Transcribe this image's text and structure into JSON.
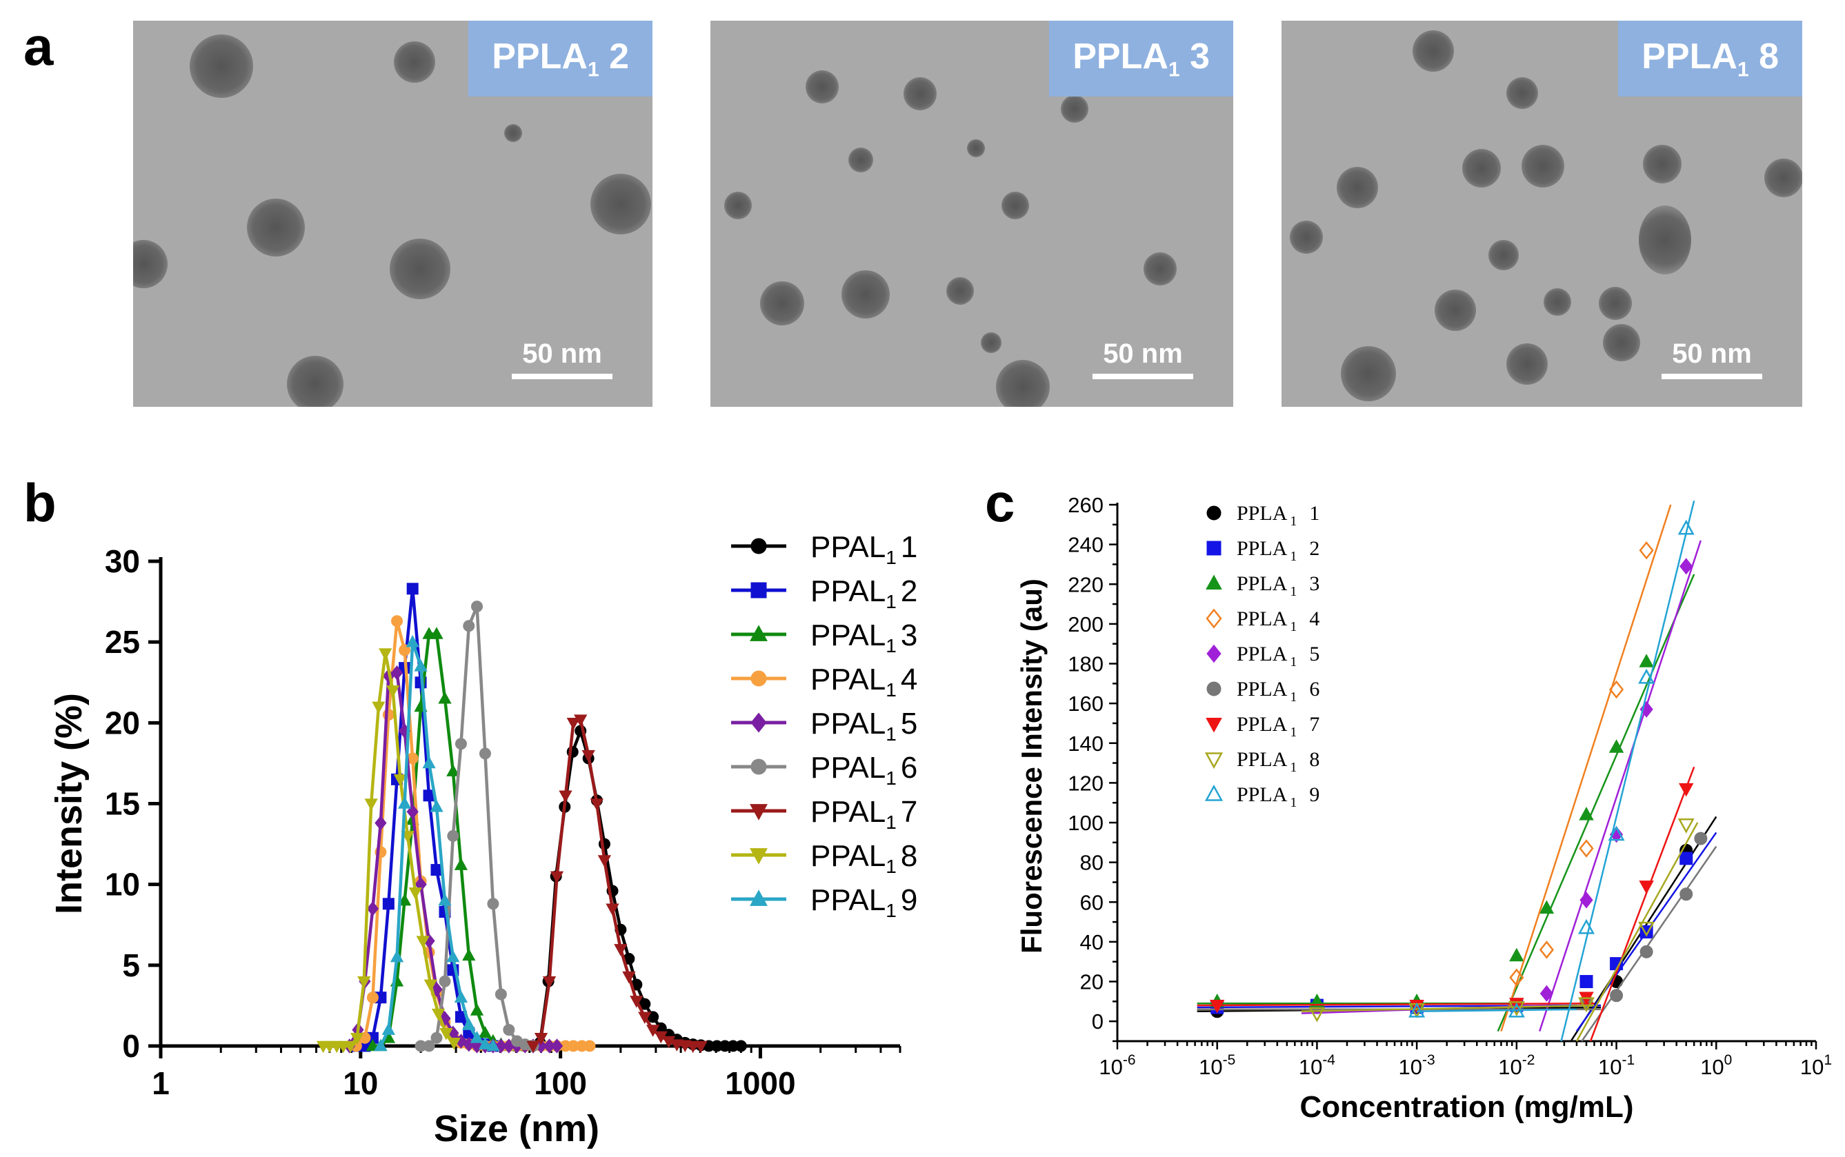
{
  "panels": {
    "a": {
      "letter": "a",
      "images": [
        {
          "label": "PPLA",
          "sub": "1",
          "suffix": " 2",
          "scalebar": "50 nm"
        },
        {
          "label": "PPLA",
          "sub": "1",
          "suffix": " 3",
          "scalebar": "50 nm"
        },
        {
          "label": "PPLA",
          "sub": "1",
          "suffix": " 8",
          "scalebar": "50 nm"
        }
      ]
    },
    "b": {
      "letter": "b"
    },
    "c": {
      "letter": "c"
    }
  },
  "chart_data": [
    {
      "id": "b",
      "type": "line",
      "xlabel": "Size (nm)",
      "ylabel": "Intensity (%)",
      "xscale": "log",
      "xlim": [
        1,
        5000
      ],
      "ylim": [
        0,
        30
      ],
      "xticks": [
        1,
        10,
        100,
        1000
      ],
      "xtick_labels": [
        "1",
        "10",
        "100",
        "1000"
      ],
      "yticks": [
        0,
        5,
        10,
        15,
        20,
        25,
        30
      ],
      "ytick_labels": [
        "0",
        "5",
        "10",
        "15",
        "20",
        "25",
        "30"
      ],
      "legend_position": "right",
      "series": [
        {
          "name": "PPAL",
          "sub": "1",
          "num": "1",
          "color": "#000000",
          "marker": "circle",
          "x": [
            60,
            66,
            72,
            79,
            87,
            95,
            105,
            115,
            126,
            138,
            152,
            166,
            182,
            200,
            220,
            240,
            264,
            290,
            318,
            348,
            382,
            420,
            460,
            504,
            552,
            606,
            665,
            730,
            800
          ],
          "y": [
            0,
            0,
            0,
            0.2,
            4,
            10.5,
            14.8,
            18.2,
            19.5,
            17.8,
            15.2,
            12.5,
            9.6,
            7.2,
            5.4,
            3.8,
            2.6,
            1.8,
            1.1,
            0.7,
            0.4,
            0.2,
            0.1,
            0.05,
            0,
            0,
            0,
            0,
            0
          ]
        },
        {
          "name": "PPAL",
          "sub": "1",
          "num": "2",
          "color": "#1010d0",
          "marker": "square",
          "x": [
            9.5,
            10.5,
            11.5,
            12.6,
            13.8,
            15.2,
            16.6,
            18.2,
            20,
            22,
            24,
            26.4,
            29,
            31.8,
            34.8,
            38.2,
            42,
            46
          ],
          "y": [
            0,
            0,
            0.5,
            3,
            8.8,
            16.5,
            23.4,
            28.3,
            22.5,
            15.5,
            10.9,
            8.3,
            4.7,
            1.8,
            0.8,
            0.3,
            0.1,
            0
          ]
        },
        {
          "name": "PPAL",
          "sub": "1",
          "num": "3",
          "color": "#0f8a0f",
          "marker": "triangle",
          "x": [
            11.5,
            12.6,
            13.8,
            15.2,
            16.6,
            18.2,
            20,
            22,
            24,
            26.4,
            29,
            31.8,
            34.8,
            38.2,
            42,
            46,
            50.4,
            55.2,
            60.6
          ],
          "y": [
            0,
            0,
            0.5,
            4,
            9,
            14,
            21,
            25.5,
            25.5,
            21.5,
            17,
            11.2,
            5.6,
            2.2,
            0.8,
            0.3,
            0.1,
            0,
            0
          ]
        },
        {
          "name": "PPAL",
          "sub": "1",
          "num": "4",
          "color": "#f7a040",
          "marker": "circle",
          "x": [
            9.5,
            10.5,
            11.5,
            12.6,
            13.8,
            15.2,
            16.6,
            18.2,
            20,
            22,
            24,
            26.4,
            29,
            31.8,
            34.8,
            38.2,
            42,
            46,
            50.4,
            55.2,
            60.6,
            66.5,
            73,
            80,
            88,
            96,
            106,
            116,
            128,
            140
          ],
          "y": [
            0,
            0.5,
            3,
            12,
            20.5,
            26.3,
            24.5,
            17.8,
            10.2,
            5.8,
            3.3,
            1.5,
            0.6,
            0.2,
            0.1,
            0,
            0,
            0,
            0,
            0,
            0,
            0,
            0,
            0,
            0,
            0,
            0,
            0,
            0,
            0
          ]
        },
        {
          "name": "PPAL",
          "sub": "1",
          "num": "5",
          "color": "#7a1fa2",
          "marker": "diamond",
          "x": [
            8.8,
            9.7,
            10.5,
            11.5,
            12.6,
            13.8,
            15.2,
            16.6,
            18.2,
            20,
            22,
            24,
            26.4,
            29,
            31.8,
            34.8,
            38.2,
            42,
            46,
            50.4,
            55.2,
            60.6,
            66.5,
            73,
            80,
            88,
            96
          ],
          "y": [
            0,
            1,
            4,
            8.5,
            13.8,
            22.9,
            23.1,
            19.5,
            14.5,
            10,
            6.5,
            3.5,
            1.7,
            0.8,
            0.3,
            0.1,
            0,
            0,
            0,
            0,
            0,
            0,
            0,
            0,
            0,
            0,
            0
          ]
        },
        {
          "name": "PPAL",
          "sub": "1",
          "num": "6",
          "color": "#888888",
          "marker": "circle",
          "x": [
            20,
            22,
            24,
            26.4,
            29,
            31.8,
            34.8,
            38.2,
            42,
            46,
            50.4,
            55.2,
            60.6,
            66.5,
            73
          ],
          "y": [
            0,
            0,
            0.5,
            4,
            13,
            18.7,
            26,
            27.2,
            18.1,
            8.8,
            3.2,
            1,
            0.3,
            0.1,
            0
          ]
        },
        {
          "name": "PPAL",
          "sub": "1",
          "num": "7",
          "color": "#9b1b1b",
          "marker": "triangle-down",
          "x": [
            73,
            80,
            88,
            96,
            106,
            116,
            126,
            138,
            152,
            166,
            182,
            200,
            220,
            240,
            264,
            290,
            318,
            348,
            382,
            420,
            460,
            504
          ],
          "y": [
            0,
            0.5,
            4,
            10.5,
            15.5,
            20,
            20.2,
            18,
            15,
            11.5,
            8.5,
            6,
            4.3,
            2.8,
            1.8,
            1,
            0.6,
            0.3,
            0.1,
            0.05,
            0,
            0
          ]
        },
        {
          "name": "PPAL",
          "sub": "1",
          "num": "8",
          "color": "#b5b513",
          "marker": "triangle-down",
          "x": [
            6.5,
            7,
            7.6,
            8.2,
            8.9,
            9.6,
            10.4,
            11.3,
            12.3,
            13.3,
            14.5,
            15.8,
            17.2,
            18.8,
            20.5,
            22.4,
            24.5,
            26.8,
            29.3
          ],
          "y": [
            0,
            0,
            0,
            0,
            0,
            0.5,
            4,
            15,
            21,
            24.3,
            22,
            16.5,
            13,
            9.5,
            6.5,
            3.8,
            2,
            0.8,
            0.2
          ]
        },
        {
          "name": "PPAL",
          "sub": "1",
          "num": "9",
          "color": "#2aa6c6",
          "marker": "triangle",
          "x": [
            12.6,
            13.8,
            15.2,
            16.6,
            18.2,
            20,
            22,
            24,
            26.4,
            29,
            31.8,
            34.8,
            38.2,
            42,
            46
          ],
          "y": [
            0,
            1,
            5.5,
            15,
            25,
            23.5,
            17.5,
            14.8,
            9,
            5.5,
            3,
            1.3,
            0.5,
            0.1,
            0
          ]
        }
      ]
    },
    {
      "id": "c",
      "type": "scatter",
      "xlabel": "Concentration (mg/mL)",
      "ylabel": "Fluorescence Intensity (au)",
      "xscale": "log",
      "xlim": [
        1e-06,
        10
      ],
      "ylim": [
        -10,
        260
      ],
      "xtick_exponents": [
        "-6",
        "-5",
        "-4",
        "-3",
        "-2",
        "-1",
        "0",
        "1"
      ],
      "xtick_base": "10",
      "yticks": [
        0,
        20,
        40,
        60,
        80,
        100,
        120,
        140,
        160,
        180,
        200,
        220,
        240,
        260
      ],
      "ytick_labels": [
        "0",
        "20",
        "40",
        "60",
        "80",
        "100",
        "120",
        "140",
        "160",
        "180",
        "200",
        "220",
        "240",
        "260"
      ],
      "legend_position": "top-left",
      "series": [
        {
          "name": "PPLA",
          "sub": "1",
          "num": "1",
          "color": "#000000",
          "marker": "circle",
          "x": [
            1e-05,
            0.0001,
            0.001,
            0.01,
            0.05,
            0.1,
            0.5
          ],
          "y": [
            5,
            7,
            8,
            8,
            10,
            20,
            86
          ],
          "fit": [
            [
              6.3e-06,
              5
            ],
            [
              0.07,
              7
            ]
          ],
          "fit2": [
            [
              0.035,
              -10
            ],
            [
              1,
              103
            ]
          ]
        },
        {
          "name": "PPLA",
          "sub": "1",
          "num": "2",
          "color": "#1414e6",
          "marker": "square",
          "x": [
            1e-05,
            0.0001,
            0.001,
            0.01,
            0.05,
            0.1,
            0.2,
            0.5
          ],
          "y": [
            7,
            8,
            7,
            8,
            20,
            29,
            45,
            82
          ],
          "fit": [
            [
              6.3e-06,
              7
            ],
            [
              0.07,
              8
            ]
          ],
          "fit2": [
            [
              0.04,
              -5
            ],
            [
              1,
              95
            ]
          ]
        },
        {
          "name": "PPLA",
          "sub": "1",
          "num": "3",
          "color": "#16941a",
          "marker": "triangle",
          "x": [
            1e-05,
            0.0001,
            0.001,
            0.01,
            0.02,
            0.05,
            0.1,
            0.2
          ],
          "y": [
            10,
            10,
            10,
            33,
            57,
            104,
            138,
            181
          ],
          "fit": [
            [
              6.3e-06,
              9
            ],
            [
              0.01,
              9
            ]
          ],
          "fit2": [
            [
              0.0065,
              -5
            ],
            [
              0.6,
              225
            ]
          ]
        },
        {
          "name": "PPLA",
          "sub": "1",
          "num": "4",
          "color": "#f08020",
          "marker": "diamond-open",
          "x": [
            0.01,
            0.02,
            0.05,
            0.1,
            0.2
          ],
          "y": [
            22,
            36,
            87,
            167,
            237
          ],
          "fit": [
            [
              6.3e-06,
              6
            ],
            [
              0.008,
              6
            ]
          ],
          "fit2": [
            [
              0.007,
              -5
            ],
            [
              0.35,
              260
            ]
          ]
        },
        {
          "name": "PPLA",
          "sub": "1",
          "num": "5",
          "color": "#a020d8",
          "marker": "diamond",
          "x": [
            0.02,
            0.05,
            0.1,
            0.2,
            0.5
          ],
          "y": [
            14,
            61,
            94,
            157,
            229
          ],
          "fit": [
            [
              7e-05,
              4
            ],
            [
              0.02,
              8
            ]
          ],
          "fit2": [
            [
              0.017,
              -5
            ],
            [
              0.7,
              242
            ]
          ]
        },
        {
          "name": "PPLA",
          "sub": "1",
          "num": "6",
          "color": "#777777",
          "marker": "circle",
          "x": [
            0.05,
            0.1,
            0.2,
            0.5,
            0.7
          ],
          "y": [
            10,
            13,
            35,
            64,
            92
          ],
          "fit": [
            [
              6.3e-06,
              6
            ],
            [
              0.07,
              6
            ]
          ],
          "fit2": [
            [
              0.045,
              -10
            ],
            [
              1,
              88
            ]
          ]
        },
        {
          "name": "PPLA",
          "sub": "1",
          "num": "7",
          "color": "#ee1414",
          "marker": "triangle-down",
          "x": [
            1e-05,
            0.001,
            0.01,
            0.05,
            0.2,
            0.5
          ],
          "y": [
            8,
            8,
            9,
            12,
            68,
            117
          ],
          "fit": [
            [
              6.3e-06,
              8
            ],
            [
              0.06,
              9
            ]
          ],
          "fit2": [
            [
              0.055,
              -10
            ],
            [
              0.6,
              128
            ]
          ]
        },
        {
          "name": "PPLA",
          "sub": "1",
          "num": "8",
          "color": "#a8a820",
          "marker": "triangle-down-open",
          "x": [
            0.0001,
            0.001,
            0.01,
            0.05,
            0.2,
            0.5
          ],
          "y": [
            4,
            6,
            7,
            9,
            47,
            99
          ],
          "fit": [
            [
              7e-05,
              5
            ],
            [
              0.06,
              8
            ]
          ],
          "fit2": [
            [
              0.04,
              -10
            ],
            [
              0.65,
              100
            ]
          ]
        },
        {
          "name": "PPLA",
          "sub": "1",
          "num": "9",
          "color": "#24a4d4",
          "marker": "triangle-open",
          "x": [
            0.001,
            0.01,
            0.05,
            0.1,
            0.2,
            0.5
          ],
          "y": [
            5,
            5,
            47,
            94,
            173,
            248
          ],
          "fit": [
            [
              0.001,
              5
            ],
            [
              0.04,
              6
            ]
          ],
          "fit2": [
            [
              0.028,
              -10
            ],
            [
              0.6,
              262
            ]
          ]
        }
      ]
    }
  ]
}
